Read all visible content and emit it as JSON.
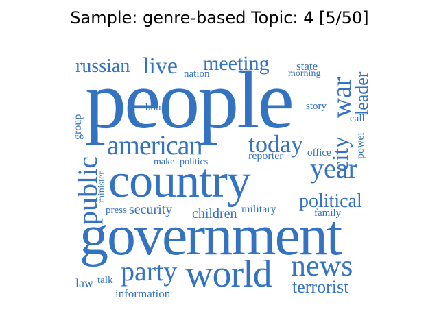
{
  "title": "Sample: genre-based Topic: 4 [5/50]",
  "style": {
    "word_color": "#3473c2",
    "background": "#ffffff",
    "title_color": "#000000"
  },
  "words": {
    "people": "people",
    "government": "government",
    "country": "country",
    "world": "world",
    "news": "news",
    "american": "american",
    "year": "year",
    "today": "today",
    "war": "war",
    "city": "city",
    "public": "public",
    "party": "party",
    "political": "political",
    "live": "live",
    "meeting": "meeting",
    "russian": "russian",
    "leader": "leader",
    "terrorist": "terrorist",
    "security": "security",
    "children": "children",
    "state": "state",
    "reporter": "reporter",
    "information": "information",
    "military": "military",
    "law": "law",
    "power": "power",
    "make": "make",
    "politics": "politics",
    "office": "office",
    "press": "press",
    "story": "story",
    "bomb": "bomb",
    "nation": "nation",
    "morning": "morning",
    "family": "family",
    "call": "call",
    "group": "group",
    "minister": "minister",
    "talk": "talk"
  }
}
